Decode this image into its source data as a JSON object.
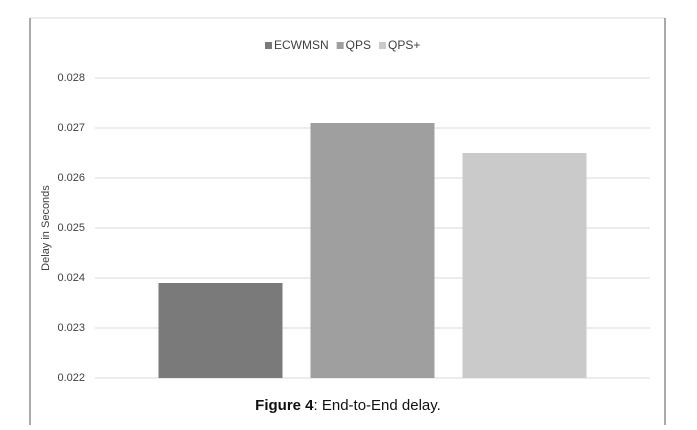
{
  "chart_data": {
    "type": "bar",
    "y_axis_label": "Delay in Seconds",
    "series": [
      {
        "name": "ECWMSN",
        "color": "#7a7a7a",
        "values": [
          0.0239
        ]
      },
      {
        "name": "QPS",
        "color": "#9f9f9f",
        "values": [
          0.0271
        ]
      },
      {
        "name": "QPS+",
        "color": "#cacaca",
        "values": [
          0.0265
        ]
      }
    ],
    "ylim": [
      0.022,
      0.028
    ],
    "yticks": [
      0.022,
      0.023,
      0.024,
      0.025,
      0.026,
      0.027,
      0.028
    ],
    "grid": true,
    "legend": "top"
  },
  "caption": {
    "label": "Figure 4",
    "text": ": End-to-End delay."
  }
}
